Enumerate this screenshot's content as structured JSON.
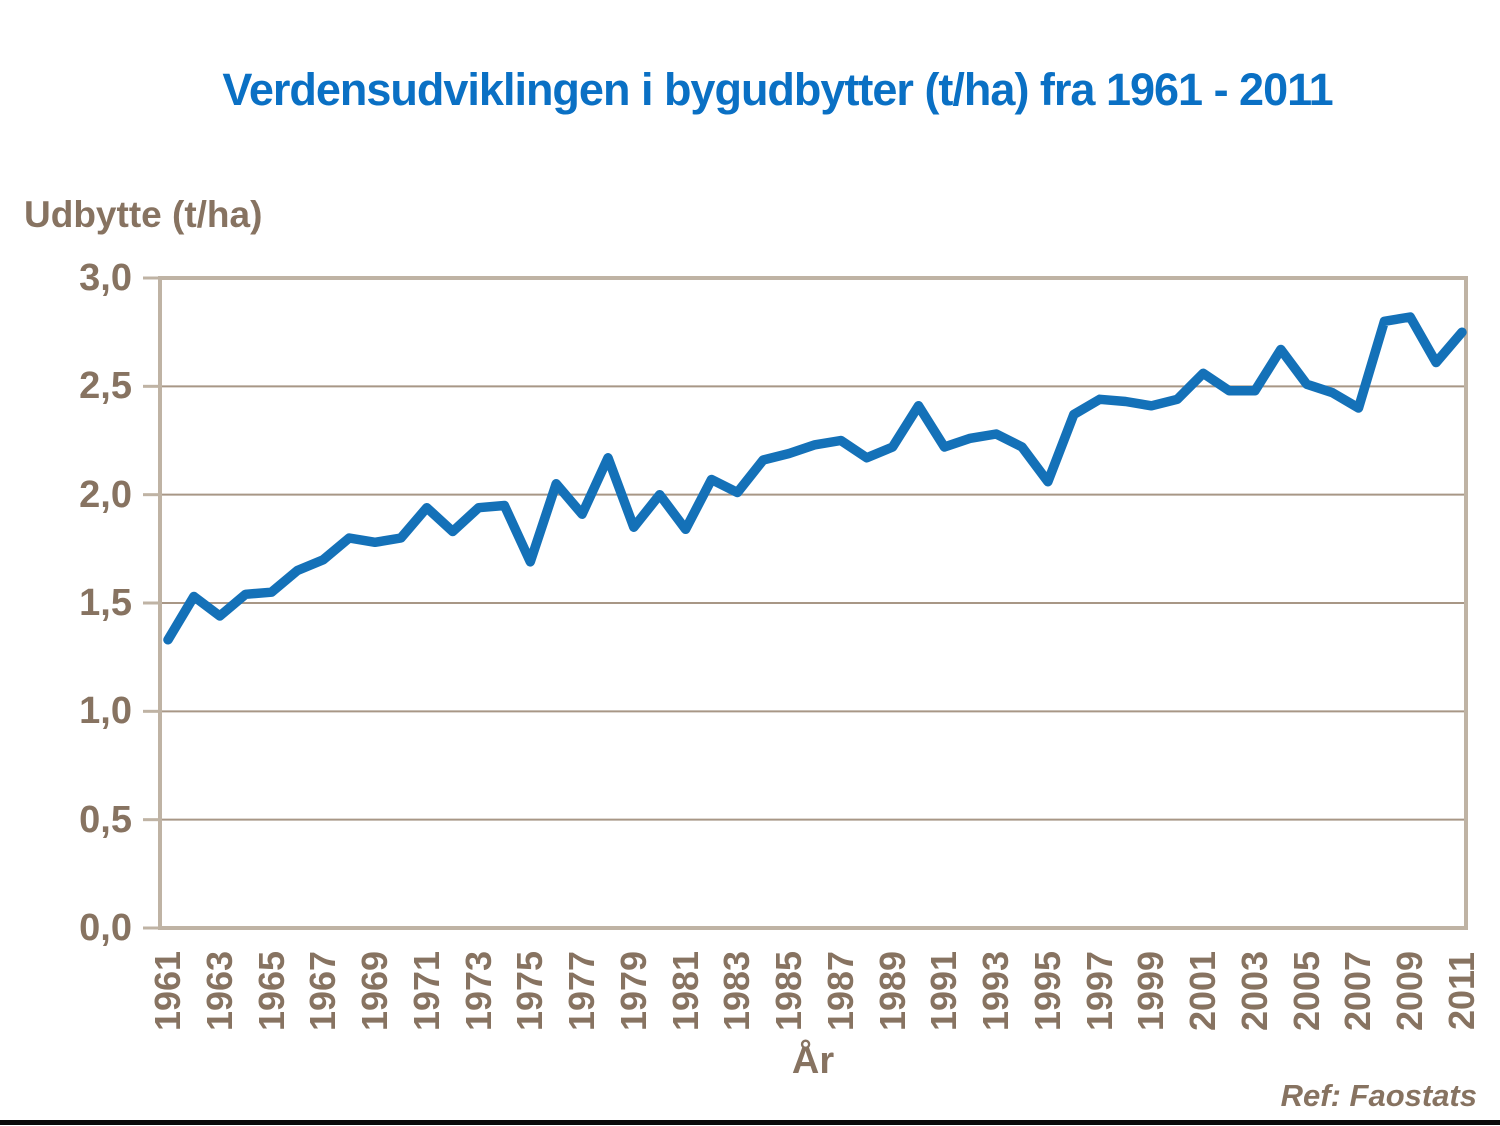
{
  "slide": {
    "footer_ref": "Ref: Faostats"
  },
  "colors": {
    "title_blue": "#0a70c4",
    "line_blue": "#1471b8",
    "axis_brown": "#877361",
    "frame_tan": "#bfb3a4",
    "gridline_tan": "#a89786",
    "footer_bar_black": "#0a0a0a",
    "background": "#ffffff"
  },
  "chart_data": {
    "type": "line",
    "title": "Verdensudviklingen i bygudbytter (t/ha) fra 1961 - 2011",
    "ylabel": "Udbytte (t/ha)",
    "xlabel": "År",
    "ylim": [
      0.0,
      3.0
    ],
    "ytick_step": 0.5,
    "ytick_labels": [
      "3,0",
      "2,5",
      "2,0",
      "1,5",
      "1,0",
      "0,5",
      "0,0"
    ],
    "xtick_labels": [
      "1961",
      "1963",
      "1965",
      "1967",
      "1969",
      "1971",
      "1973",
      "1975",
      "1977",
      "1979",
      "1981",
      "1983",
      "1985",
      "1987",
      "1989",
      "1991",
      "1993",
      "1995",
      "1997",
      "1999",
      "2001",
      "2003",
      "2005",
      "2007",
      "2009",
      "2011"
    ],
    "grid": "horizontal",
    "legend": "none",
    "x": [
      1961,
      1962,
      1963,
      1964,
      1965,
      1966,
      1967,
      1968,
      1969,
      1970,
      1971,
      1972,
      1973,
      1974,
      1975,
      1976,
      1977,
      1978,
      1979,
      1980,
      1981,
      1982,
      1983,
      1984,
      1985,
      1986,
      1987,
      1988,
      1989,
      1990,
      1991,
      1992,
      1993,
      1994,
      1995,
      1996,
      1997,
      1998,
      1999,
      2000,
      2001,
      2002,
      2003,
      2004,
      2005,
      2006,
      2007,
      2008,
      2009,
      2010,
      2011
    ],
    "values": [
      1.33,
      1.53,
      1.44,
      1.54,
      1.55,
      1.65,
      1.7,
      1.8,
      1.78,
      1.8,
      1.94,
      1.83,
      1.94,
      1.95,
      1.69,
      2.05,
      1.91,
      2.17,
      1.85,
      2.0,
      1.84,
      2.07,
      2.01,
      2.16,
      2.19,
      2.23,
      2.25,
      2.17,
      2.22,
      2.41,
      2.22,
      2.26,
      2.28,
      2.22,
      2.06,
      2.37,
      2.44,
      2.43,
      2.41,
      2.44,
      2.56,
      2.48,
      2.48,
      2.67,
      2.51,
      2.47,
      2.4,
      2.8,
      2.82,
      2.61,
      2.75
    ]
  }
}
